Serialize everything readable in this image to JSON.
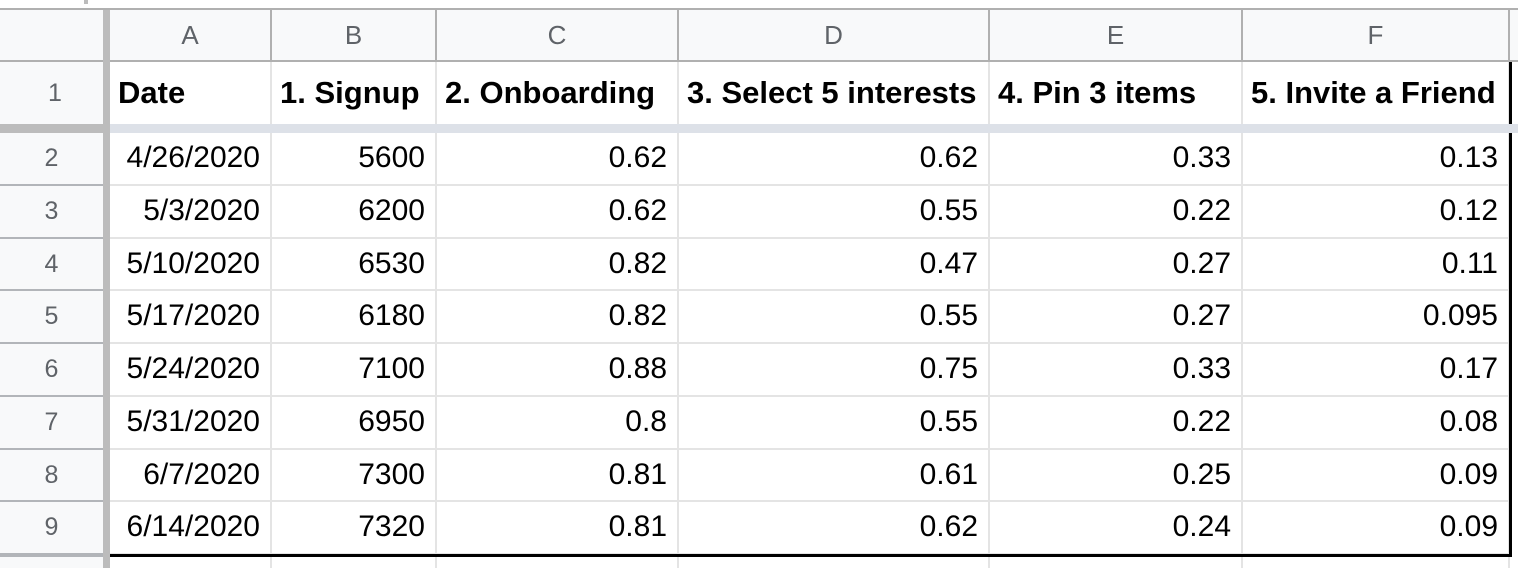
{
  "colors": {
    "header_bg": "#f8f9fa",
    "header_text": "#5f6368",
    "cell_text": "#000000",
    "grid_line": "#e4e4e4",
    "header_line": "#b0b0b0",
    "gutter_line": "#b2b5b9",
    "frozen_bar": "#bcbcbc",
    "frozen_shadow": "#dde1e8",
    "range_border": "#000000"
  },
  "spreadsheet": {
    "column_letters": [
      "A",
      "B",
      "C",
      "D",
      "E",
      "F"
    ],
    "header_row_number": "1",
    "column_headers": [
      "Date",
      "1. Signup",
      "2. Onboarding",
      "3. Select 5 interests",
      "4. Pin 3 items",
      "5. Invite a Friend"
    ],
    "rows": [
      {
        "number": "2",
        "cells": [
          "4/26/2020",
          "5600",
          "0.62",
          "0.62",
          "0.33",
          "0.13"
        ]
      },
      {
        "number": "3",
        "cells": [
          "5/3/2020",
          "6200",
          "0.62",
          "0.55",
          "0.22",
          "0.12"
        ]
      },
      {
        "number": "4",
        "cells": [
          "5/10/2020",
          "6530",
          "0.82",
          "0.47",
          "0.27",
          "0.11"
        ]
      },
      {
        "number": "5",
        "cells": [
          "5/17/2020",
          "6180",
          "0.82",
          "0.55",
          "0.27",
          "0.095"
        ]
      },
      {
        "number": "6",
        "cells": [
          "5/24/2020",
          "7100",
          "0.88",
          "0.75",
          "0.33",
          "0.17"
        ]
      },
      {
        "number": "7",
        "cells": [
          "5/31/2020",
          "6950",
          "0.8",
          "0.55",
          "0.22",
          "0.08"
        ]
      },
      {
        "number": "8",
        "cells": [
          "6/7/2020",
          "7300",
          "0.81",
          "0.61",
          "0.25",
          "0.09"
        ]
      },
      {
        "number": "9",
        "cells": [
          "6/14/2020",
          "7320",
          "0.81",
          "0.62",
          "0.24",
          "0.09"
        ]
      }
    ]
  }
}
